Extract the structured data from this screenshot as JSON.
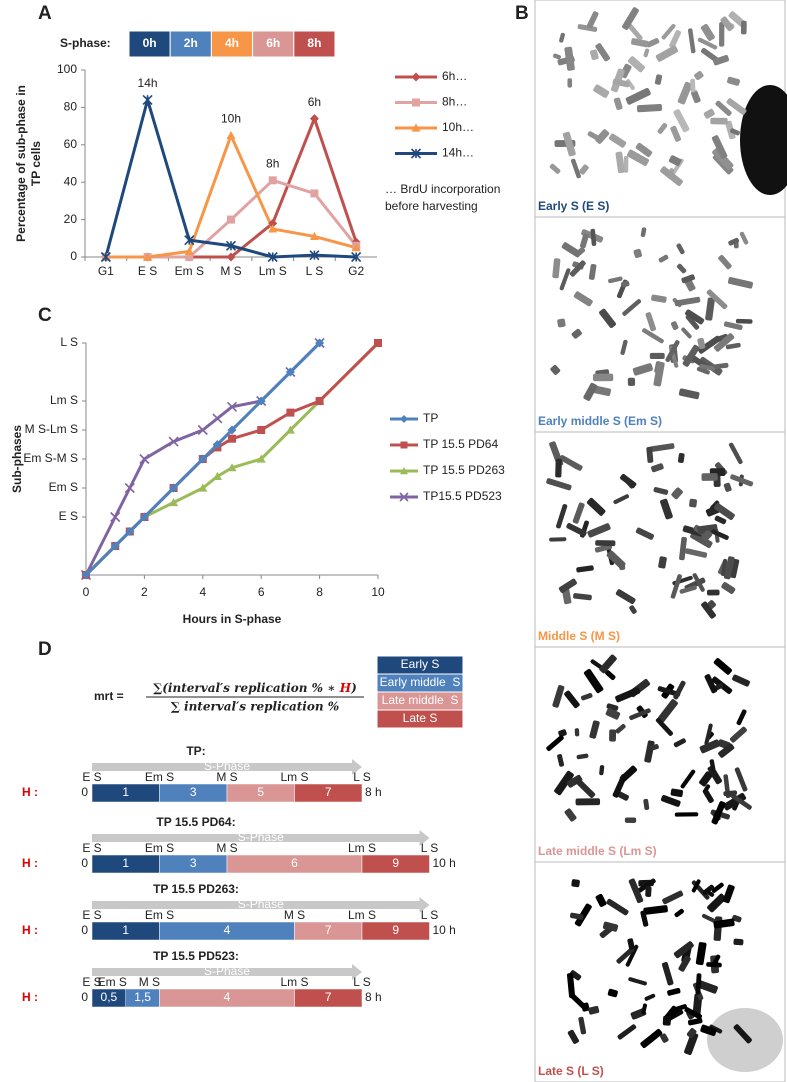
{
  "panel_labels": [
    "A",
    "B",
    "C",
    "D"
  ],
  "sphase_key": {
    "label": "S-phase:",
    "items": [
      {
        "text": "0h",
        "color": "#1f497d"
      },
      {
        "text": "2h",
        "color": "#4f81bd"
      },
      {
        "text": "4h",
        "color": "#f79646"
      },
      {
        "text": "6h",
        "color": "#d99694"
      },
      {
        "text": "8h",
        "color": "#c0504d"
      }
    ]
  },
  "chart_data": [
    {
      "type": "line",
      "ylabel": [
        "Percentage of sub-phase in",
        "TP cells"
      ],
      "categories": [
        "G1",
        "E S",
        "Em S",
        "M S",
        "Lm S",
        "L S",
        "G2"
      ],
      "ylim": [
        0,
        100
      ],
      "yticks": [
        0,
        20,
        40,
        60,
        80,
        100
      ],
      "legend_note": [
        "… BrdU incorporation",
        "before harvesting"
      ],
      "series": [
        {
          "name": "6h…",
          "peak_label": "6h",
          "color": "#c0504d",
          "marker": "diamond",
          "values": [
            0,
            0,
            0,
            0,
            18,
            74,
            8
          ]
        },
        {
          "name": "8h…",
          "peak_label": "8h",
          "color": "#e0a3a2",
          "marker": "square",
          "values": [
            0,
            0,
            0,
            20,
            41,
            34,
            6
          ]
        },
        {
          "name": "10h…",
          "peak_label": "10h",
          "color": "#f79646",
          "marker": "triangle",
          "values": [
            0,
            0,
            3,
            65,
            15,
            11,
            5
          ]
        },
        {
          "name": "14h…",
          "peak_label": "14h",
          "color": "#1f497d",
          "marker": "star",
          "values": [
            0,
            84,
            9,
            6,
            0,
            1,
            0
          ]
        }
      ]
    },
    {
      "type": "line",
      "xlabel": "Hours in S-phase",
      "ylabel": "Sub-phases",
      "xlim": [
        0,
        10
      ],
      "xticks": [
        0,
        2,
        4,
        6,
        8,
        10
      ],
      "ylim": [
        0,
        8
      ],
      "yticks": [
        {
          "value": 2,
          "label": "E S"
        },
        {
          "value": 3,
          "label": "Em S"
        },
        {
          "value": 4,
          "label": "Em S-M S"
        },
        {
          "value": 5,
          "label": "M S-Lm S"
        },
        {
          "value": 6,
          "label": "Lm S"
        },
        {
          "value": 8,
          "label": "L S"
        }
      ],
      "series": [
        {
          "name": "TP",
          "color": "#4f81bd",
          "marker": "diamond",
          "x": [
            0,
            1,
            1.5,
            2,
            3,
            4,
            4.5,
            5,
            6,
            7,
            8
          ],
          "values": [
            0,
            1,
            1.5,
            2,
            3,
            4,
            4.5,
            5,
            6,
            7,
            8
          ]
        },
        {
          "name": "TP 15.5 PD64",
          "color": "#c0504d",
          "marker": "square",
          "x": [
            0,
            1,
            1.5,
            2,
            3,
            4,
            4.5,
            5,
            6,
            7,
            8,
            10
          ],
          "values": [
            0,
            1,
            1.5,
            2,
            3,
            4,
            4.4,
            4.7,
            5,
            5.6,
            6,
            8
          ]
        },
        {
          "name": "TP 15.5 PD263",
          "color": "#9bbb59",
          "marker": "triangle",
          "x": [
            0,
            1,
            1.5,
            2,
            3,
            4,
            4.5,
            5,
            6,
            7,
            8,
            10
          ],
          "values": [
            0,
            1,
            1.5,
            2,
            2.5,
            3,
            3.4,
            3.7,
            4,
            5,
            6,
            8
          ]
        },
        {
          "name": "TP15.5 PD523",
          "color": "#8064a2",
          "marker": "cross",
          "x": [
            0,
            1,
            1.5,
            2,
            3,
            4,
            4.5,
            5,
            6,
            7,
            8
          ],
          "values": [
            0,
            2,
            3,
            4,
            4.6,
            5,
            5.4,
            5.8,
            6,
            7,
            8
          ]
        }
      ]
    }
  ],
  "micrographs": [
    {
      "caption": "Early S (E S)",
      "color": "#1f497d"
    },
    {
      "caption": "Early middle S (Em S)",
      "color": "#4f81bd"
    },
    {
      "caption": "Middle S (M S)",
      "color": "#f79646"
    },
    {
      "caption": "Late middle S (Lm S)",
      "color": "#d99694"
    },
    {
      "caption": "Late S (L S)",
      "color": "#c0504d"
    }
  ],
  "mrt": {
    "lhs": "mrt = ",
    "numerator": [
      "∑(interval′s replication % ∗ ",
      "H",
      ")"
    ],
    "denominator": "∑ interval′s replication %"
  },
  "phase_key": [
    {
      "text": "Early S",
      "color": "#1f497d"
    },
    {
      "text": "Early middle  S",
      "color": "#4f81bd"
    },
    {
      "text": "Late middle  S",
      "color": "#d99694"
    },
    {
      "text": "Late S",
      "color": "#c0504d"
    }
  ],
  "timelines": [
    {
      "title": "TP:",
      "arrow_label": "S-Phase",
      "h_label": "H :",
      "start_label": "0",
      "end_label": "8 h",
      "markers": [
        {
          "label": "E S",
          "hour": 0
        },
        {
          "label": "Em S",
          "hour": 2
        },
        {
          "label": "M S",
          "hour": 4
        },
        {
          "label": "Lm S",
          "hour": 6
        },
        {
          "label": "L S",
          "hour": 8
        }
      ],
      "segments": [
        {
          "hours": [
            0,
            2
          ],
          "label": "1",
          "color": "#1f497d"
        },
        {
          "hours": [
            2,
            4
          ],
          "label": "3",
          "color": "#4f81bd"
        },
        {
          "hours": [
            4,
            6
          ],
          "label": "5",
          "color": "#d99694"
        },
        {
          "hours": [
            6,
            8
          ],
          "label": "7",
          "color": "#c0504d"
        }
      ]
    },
    {
      "title": "TP 15.5 PD64:",
      "arrow_label": "S-Phase",
      "h_label": "H :",
      "start_label": "0",
      "end_label": "10 h",
      "markers": [
        {
          "label": "E S",
          "hour": 0
        },
        {
          "label": "Em S",
          "hour": 2
        },
        {
          "label": "M S",
          "hour": 4
        },
        {
          "label": "Lm S",
          "hour": 8
        },
        {
          "label": "L S",
          "hour": 10
        }
      ],
      "segments": [
        {
          "hours": [
            0,
            2
          ],
          "label": "1",
          "color": "#1f497d"
        },
        {
          "hours": [
            2,
            4
          ],
          "label": "3",
          "color": "#4f81bd"
        },
        {
          "hours": [
            4,
            8
          ],
          "label": "6",
          "color": "#d99694"
        },
        {
          "hours": [
            8,
            10
          ],
          "label": "9",
          "color": "#c0504d"
        }
      ]
    },
    {
      "title": "TP 15.5 PD263:",
      "arrow_label": "S-Phase",
      "h_label": "H :",
      "start_label": "0",
      "end_label": "10 h",
      "markers": [
        {
          "label": "E S",
          "hour": 0
        },
        {
          "label": "Em S",
          "hour": 2
        },
        {
          "label": "M S",
          "hour": 6
        },
        {
          "label": "Lm S",
          "hour": 8
        },
        {
          "label": "L S",
          "hour": 10
        }
      ],
      "segments": [
        {
          "hours": [
            0,
            2
          ],
          "label": "1",
          "color": "#1f497d"
        },
        {
          "hours": [
            2,
            6
          ],
          "label": "4",
          "color": "#4f81bd"
        },
        {
          "hours": [
            6,
            8
          ],
          "label": "7",
          "color": "#d99694"
        },
        {
          "hours": [
            8,
            10
          ],
          "label": "9",
          "color": "#c0504d"
        }
      ]
    },
    {
      "title": "TP 15.5 PD523:",
      "arrow_label": "S-Phase",
      "h_label": "H :",
      "start_label": "0",
      "end_label": "8 h",
      "markers": [
        {
          "label": "E S",
          "hour": 0
        },
        {
          "label": "Em S",
          "hour": 0.6
        },
        {
          "label": "M S",
          "hour": 1.7
        },
        {
          "label": "Lm S",
          "hour": 6
        },
        {
          "label": "L S",
          "hour": 8
        }
      ],
      "segments": [
        {
          "hours": [
            0,
            1
          ],
          "label": "0,5",
          "color": "#1f497d"
        },
        {
          "hours": [
            1,
            2
          ],
          "label": "1,5",
          "color": "#4f81bd"
        },
        {
          "hours": [
            2,
            6
          ],
          "label": "4",
          "color": "#d99694"
        },
        {
          "hours": [
            6,
            8
          ],
          "label": "7",
          "color": "#c0504d"
        }
      ]
    }
  ]
}
